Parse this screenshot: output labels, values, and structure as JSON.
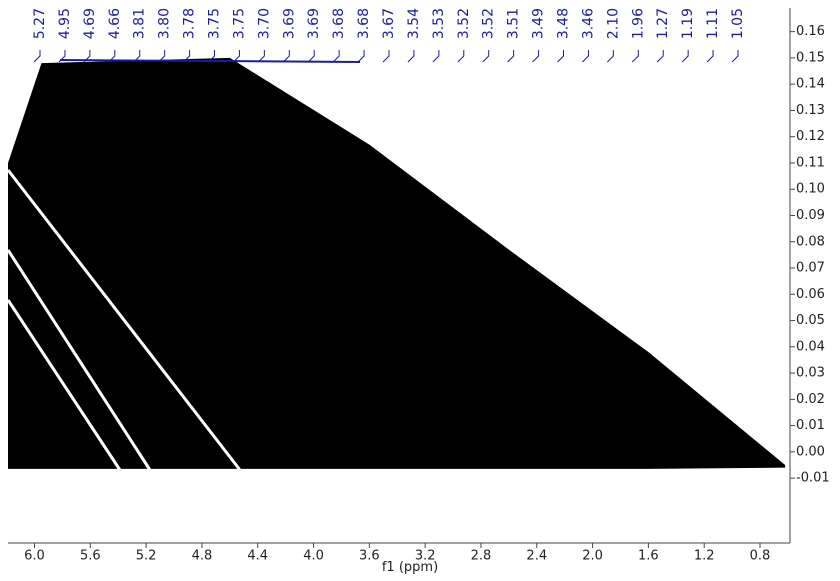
{
  "chart_data": {
    "type": "nmr",
    "xlabel": "f1 (ppm)",
    "xlim": [
      6.19,
      0.585
    ],
    "ylim": [
      -0.0347,
      0.169
    ],
    "xticks": [
      {
        "value": 6.0,
        "label": "6.0"
      },
      5.6,
      5.2,
      4.8,
      4.4,
      {
        "value": 4.0,
        "label": "4.0"
      },
      3.6,
      3.2,
      2.8,
      2.4,
      {
        "value": 2.0,
        "label": "2.0"
      },
      1.6,
      1.2,
      0.8
    ],
    "yticks": [
      0.16,
      0.15,
      0.14,
      0.13,
      0.12,
      0.11,
      {
        "value": 0.1,
        "label": "0.10"
      },
      0.09,
      0.08,
      0.07,
      0.06,
      0.05,
      0.04,
      0.03,
      0.02,
      0.01,
      {
        "value": 0,
        "label": "0.00"
      },
      -0.01
    ],
    "peak_labels": [
      "5.27",
      "4.95",
      "4.69",
      "4.66",
      "3.81",
      "3.80",
      "3.78",
      "3.75",
      "3.75",
      "3.70",
      "3.69",
      "3.69",
      "3.68",
      "3.68",
      "3.67",
      "3.54",
      "3.53",
      "3.52",
      "3.52",
      "3.51",
      "3.49",
      "3.48",
      "3.46",
      "2.10",
      "1.96",
      "1.27",
      "1.19",
      "1.11",
      "1.05"
    ],
    "peak_color": "#1c1c9a",
    "spectrum": {
      "color": "#000000",
      "x": [
        6.19,
        5.95,
        4.6,
        3.6,
        2.6,
        1.6,
        0.62
      ],
      "upper": [
        0.11,
        0.148,
        0.15,
        0.117,
        0.077,
        0.038,
        -0.005
      ],
      "lower": [
        -0.0065,
        -0.0065,
        -0.0065,
        -0.0065,
        -0.0065,
        -0.0065,
        -0.006
      ]
    }
  }
}
